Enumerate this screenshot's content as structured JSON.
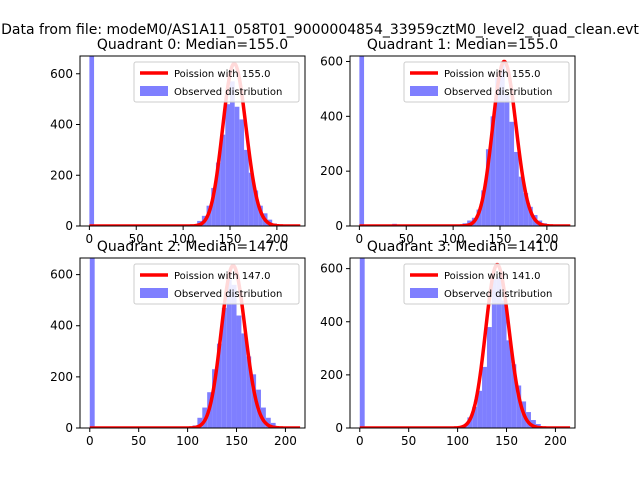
{
  "figure": {
    "suptitle": "Data from file: modeM0/AS1A11_058T01_9000004854_33959cztM0_level2_quad_clean.evt"
  },
  "chart_data": [
    {
      "type": "bar",
      "title": "Quadrant 0: Median=155.0",
      "xlim": [
        -10,
        230
      ],
      "ylim": [
        0,
        670
      ],
      "xticks": [
        0,
        50,
        100,
        150,
        200
      ],
      "yticks": [
        0,
        200,
        400,
        600
      ],
      "series": [
        {
          "name": "Poission with 155.0",
          "kind": "line",
          "mean": 155.0,
          "peak": 640,
          "color": "#ff0000"
        },
        {
          "name": "Observed distribution",
          "kind": "hist",
          "color": "#7f7fff",
          "bins": [
            {
              "x0": 0,
              "x1": 5,
              "count": 670
            },
            {
              "x0": 115,
              "x1": 120,
              "count": 20
            },
            {
              "x0": 120,
              "x1": 125,
              "count": 40
            },
            {
              "x0": 125,
              "x1": 130,
              "count": 80
            },
            {
              "x0": 130,
              "x1": 135,
              "count": 150
            },
            {
              "x0": 135,
              "x1": 140,
              "count": 250
            },
            {
              "x0": 140,
              "x1": 145,
              "count": 360
            },
            {
              "x0": 145,
              "x1": 150,
              "count": 480
            },
            {
              "x0": 150,
              "x1": 155,
              "count": 570
            },
            {
              "x0": 155,
              "x1": 160,
              "count": 470
            },
            {
              "x0": 160,
              "x1": 165,
              "count": 420
            },
            {
              "x0": 165,
              "x1": 170,
              "count": 300
            },
            {
              "x0": 170,
              "x1": 175,
              "count": 210
            },
            {
              "x0": 175,
              "x1": 180,
              "count": 140
            },
            {
              "x0": 180,
              "x1": 185,
              "count": 80
            },
            {
              "x0": 185,
              "x1": 190,
              "count": 50
            },
            {
              "x0": 190,
              "x1": 195,
              "count": 25
            },
            {
              "x0": 195,
              "x1": 200,
              "count": 10
            }
          ]
        }
      ],
      "legend": "upper right"
    },
    {
      "type": "bar",
      "title": "Quadrant 1: Median=155.0",
      "xlim": [
        -10,
        230
      ],
      "ylim": [
        0,
        620
      ],
      "xticks": [
        0,
        50,
        100,
        150,
        200
      ],
      "yticks": [
        0,
        200,
        400,
        600
      ],
      "series": [
        {
          "name": "Poission with 155.0",
          "kind": "line",
          "mean": 155.0,
          "peak": 600,
          "color": "#ff0000"
        },
        {
          "name": "Observed distribution",
          "kind": "hist",
          "color": "#7f7fff",
          "bins": [
            {
              "x0": 0,
              "x1": 5,
              "count": 620
            },
            {
              "x0": 35,
              "x1": 40,
              "count": 8
            },
            {
              "x0": 65,
              "x1": 70,
              "count": 5
            },
            {
              "x0": 95,
              "x1": 100,
              "count": 5
            },
            {
              "x0": 105,
              "x1": 110,
              "count": 5
            },
            {
              "x0": 110,
              "x1": 115,
              "count": 10
            },
            {
              "x0": 115,
              "x1": 120,
              "count": 20
            },
            {
              "x0": 120,
              "x1": 125,
              "count": 30
            },
            {
              "x0": 125,
              "x1": 130,
              "count": 60
            },
            {
              "x0": 130,
              "x1": 135,
              "count": 130
            },
            {
              "x0": 135,
              "x1": 140,
              "count": 280
            },
            {
              "x0": 140,
              "x1": 145,
              "count": 400
            },
            {
              "x0": 145,
              "x1": 150,
              "count": 540
            },
            {
              "x0": 150,
              "x1": 155,
              "count": 590
            },
            {
              "x0": 155,
              "x1": 160,
              "count": 480
            },
            {
              "x0": 160,
              "x1": 165,
              "count": 380
            },
            {
              "x0": 165,
              "x1": 170,
              "count": 270
            },
            {
              "x0": 170,
              "x1": 175,
              "count": 180
            },
            {
              "x0": 175,
              "x1": 180,
              "count": 120
            },
            {
              "x0": 180,
              "x1": 185,
              "count": 70
            },
            {
              "x0": 185,
              "x1": 190,
              "count": 40
            },
            {
              "x0": 190,
              "x1": 195,
              "count": 20
            },
            {
              "x0": 195,
              "x1": 200,
              "count": 10
            }
          ]
        }
      ],
      "legend": "upper right"
    },
    {
      "type": "bar",
      "title": "Quadrant 2: Median=147.0",
      "xlim": [
        -10,
        220
      ],
      "ylim": [
        0,
        665
      ],
      "xticks": [
        0,
        50,
        100,
        150,
        200
      ],
      "yticks": [
        0,
        200,
        400,
        600
      ],
      "series": [
        {
          "name": "Poission with 147.0",
          "kind": "line",
          "mean": 147.0,
          "peak": 635,
          "color": "#ff0000"
        },
        {
          "name": "Observed distribution",
          "kind": "hist",
          "color": "#7f7fff",
          "bins": [
            {
              "x0": 0,
              "x1": 5,
              "count": 665
            },
            {
              "x0": 105,
              "x1": 110,
              "count": 10
            },
            {
              "x0": 110,
              "x1": 115,
              "count": 40
            },
            {
              "x0": 115,
              "x1": 120,
              "count": 80
            },
            {
              "x0": 120,
              "x1": 125,
              "count": 140
            },
            {
              "x0": 125,
              "x1": 130,
              "count": 230
            },
            {
              "x0": 130,
              "x1": 135,
              "count": 330
            },
            {
              "x0": 135,
              "x1": 140,
              "count": 470
            },
            {
              "x0": 140,
              "x1": 145,
              "count": 580
            },
            {
              "x0": 145,
              "x1": 150,
              "count": 560
            },
            {
              "x0": 150,
              "x1": 155,
              "count": 440
            },
            {
              "x0": 155,
              "x1": 160,
              "count": 370
            },
            {
              "x0": 160,
              "x1": 165,
              "count": 280
            },
            {
              "x0": 165,
              "x1": 170,
              "count": 210
            },
            {
              "x0": 170,
              "x1": 175,
              "count": 150
            },
            {
              "x0": 175,
              "x1": 180,
              "count": 80
            },
            {
              "x0": 180,
              "x1": 185,
              "count": 40
            },
            {
              "x0": 185,
              "x1": 190,
              "count": 20
            }
          ]
        }
      ],
      "legend": "upper right"
    },
    {
      "type": "bar",
      "title": "Quadrant 3: Median=141.0",
      "xlim": [
        -10,
        220
      ],
      "ylim": [
        0,
        640
      ],
      "xticks": [
        0,
        50,
        100,
        150,
        200
      ],
      "yticks": [
        0,
        200,
        400,
        600
      ],
      "series": [
        {
          "name": "Poission with 141.0",
          "kind": "line",
          "mean": 141.0,
          "peak": 615,
          "color": "#ff0000"
        },
        {
          "name": "Observed distribution",
          "kind": "hist",
          "color": "#7f7fff",
          "bins": [
            {
              "x0": 0,
              "x1": 5,
              "count": 640
            },
            {
              "x0": 105,
              "x1": 110,
              "count": 10
            },
            {
              "x0": 110,
              "x1": 115,
              "count": 40
            },
            {
              "x0": 115,
              "x1": 120,
              "count": 80
            },
            {
              "x0": 120,
              "x1": 125,
              "count": 140
            },
            {
              "x0": 125,
              "x1": 130,
              "count": 230
            },
            {
              "x0": 130,
              "x1": 135,
              "count": 380
            },
            {
              "x0": 135,
              "x1": 140,
              "count": 560
            },
            {
              "x0": 140,
              "x1": 145,
              "count": 570
            },
            {
              "x0": 145,
              "x1": 150,
              "count": 480
            },
            {
              "x0": 150,
              "x1": 155,
              "count": 330
            },
            {
              "x0": 155,
              "x1": 160,
              "count": 240
            },
            {
              "x0": 160,
              "x1": 165,
              "count": 160
            },
            {
              "x0": 165,
              "x1": 170,
              "count": 100
            },
            {
              "x0": 170,
              "x1": 175,
              "count": 60
            },
            {
              "x0": 175,
              "x1": 180,
              "count": 30
            },
            {
              "x0": 180,
              "x1": 185,
              "count": 15
            }
          ]
        }
      ],
      "legend": "upper right"
    }
  ]
}
